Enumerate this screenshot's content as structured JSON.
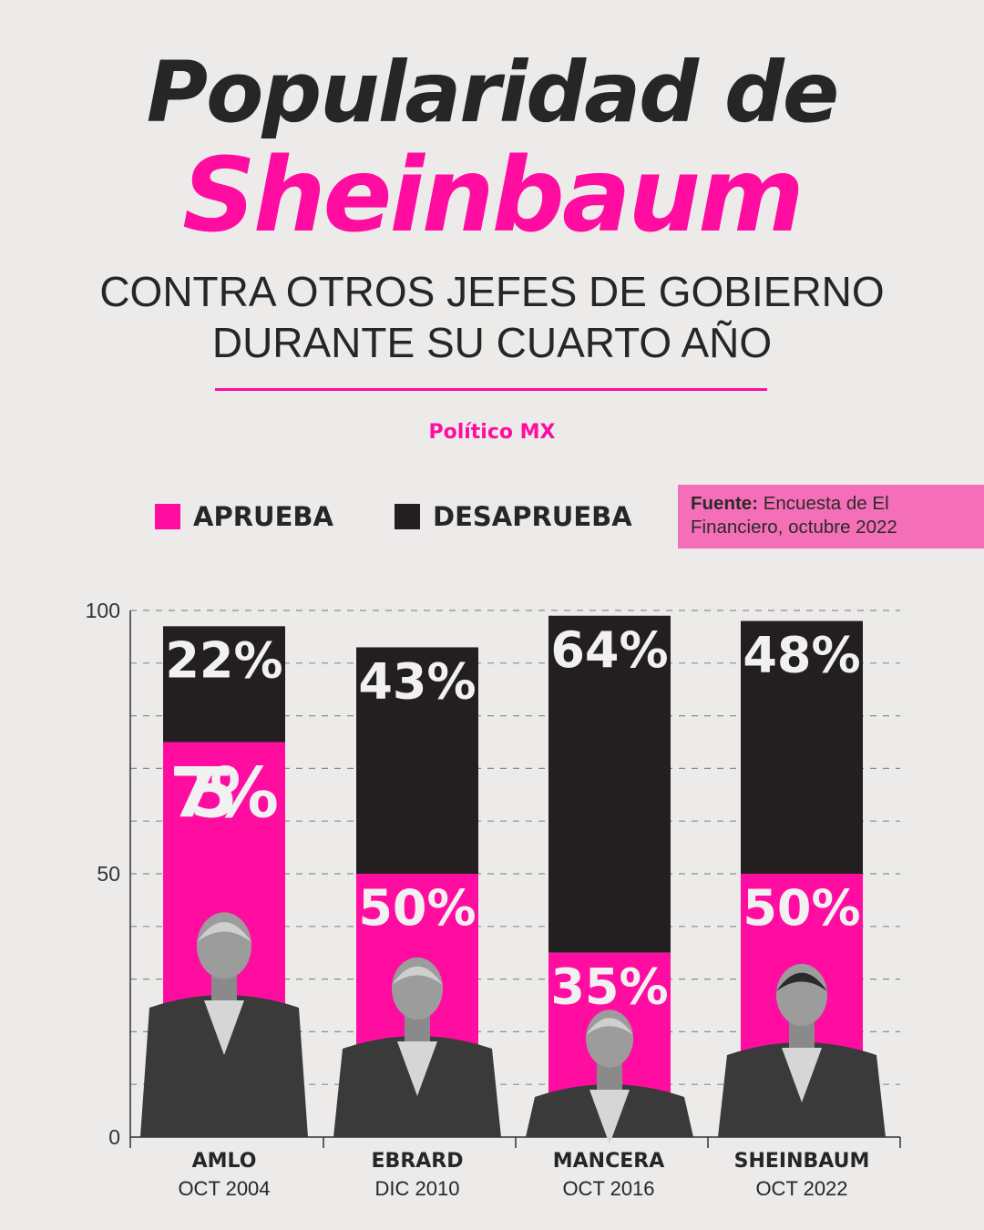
{
  "header": {
    "title_line1": "Popularidad de",
    "title_line2": "Sheinbaum",
    "subtitle_line1": "CONTRA OTROS JEFES DE GOBIERNO",
    "subtitle_line2": "DURANTE SU CUARTO AÑO",
    "brand": "Político MX"
  },
  "legend": {
    "approve_label": "APRUEBA",
    "disapprove_label": "DESAPRUEBA"
  },
  "source": {
    "label": "Fuente:",
    "text": "Encuesta de El Financiero, octubre 2022"
  },
  "colors": {
    "approve": "#ff0da0",
    "disapprove": "#231f20",
    "background": "#ecebea",
    "text": "#262626"
  },
  "chart_data": {
    "type": "bar",
    "stacked": true,
    "categories": [
      "AMLO",
      "EBRARD",
      "MANCERA",
      "SHEINBAUM"
    ],
    "category_dates": [
      "OCT 2004",
      "DIC 2010",
      "OCT 2016",
      "OCT 2022"
    ],
    "series": [
      {
        "name": "APRUEBA",
        "values": [
          75,
          50,
          35,
          50
        ],
        "labels": [
          "75%",
          "50%",
          "35%",
          "50%"
        ]
      },
      {
        "name": "DESAPRUEBA",
        "values": [
          22,
          43,
          64,
          48
        ],
        "labels": [
          "22%",
          "43%",
          "64%",
          "48%"
        ]
      }
    ],
    "yticks": [
      "0",
      "50",
      "100"
    ],
    "ylim": [
      0,
      100
    ],
    "grid": true,
    "legend_position": "top"
  }
}
